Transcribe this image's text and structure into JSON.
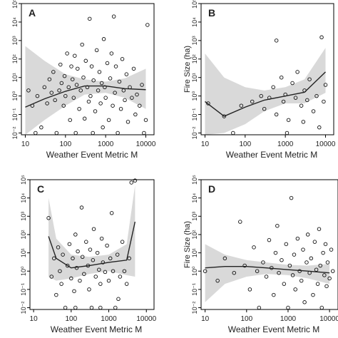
{
  "chart_data": [
    {
      "type": "scatter",
      "panel_label": "A",
      "xlabel": "Weather Event Metric M",
      "ylabel": "",
      "x_scale": "log",
      "y_scale": "log",
      "xlim": [
        8,
        16000
      ],
      "ylim": [
        0.008,
        100000
      ],
      "x_ticks": [
        "10",
        "100",
        "1000",
        "10000"
      ],
      "y_ticks": [
        "10^-2",
        "10^-1",
        "10^0",
        "10^1",
        "10^2",
        "10^3",
        "10^4",
        "10^5"
      ],
      "points": [
        [
          12,
          2
        ],
        [
          15,
          0.3
        ],
        [
          18,
          0.01
        ],
        [
          20,
          1
        ],
        [
          25,
          0.02
        ],
        [
          30,
          3
        ],
        [
          35,
          0.4
        ],
        [
          40,
          8
        ],
        [
          45,
          1.5
        ],
        [
          50,
          20
        ],
        [
          55,
          0.6
        ],
        [
          60,
          0.01
        ],
        [
          70,
          2
        ],
        [
          75,
          50
        ],
        [
          80,
          5
        ],
        [
          90,
          0.3
        ],
        [
          95,
          12
        ],
        [
          100,
          1
        ],
        [
          110,
          200
        ],
        [
          120,
          3
        ],
        [
          130,
          0.05
        ],
        [
          140,
          40
        ],
        [
          150,
          8
        ],
        [
          160,
          0.8
        ],
        [
          170,
          150
        ],
        [
          180,
          0.01
        ],
        [
          190,
          4
        ],
        [
          200,
          30
        ],
        [
          220,
          0.2
        ],
        [
          240,
          2
        ],
        [
          260,
          600
        ],
        [
          280,
          10
        ],
        [
          300,
          0.06
        ],
        [
          320,
          80
        ],
        [
          350,
          3
        ],
        [
          380,
          0.5
        ],
        [
          400,
          15000
        ],
        [
          420,
          1
        ],
        [
          450,
          40
        ],
        [
          480,
          0.01
        ],
        [
          500,
          7
        ],
        [
          550,
          0.15
        ],
        [
          600,
          300
        ],
        [
          650,
          2
        ],
        [
          700,
          20
        ],
        [
          750,
          0.4
        ],
        [
          800,
          5
        ],
        [
          850,
          0.02
        ],
        [
          900,
          1200
        ],
        [
          950,
          3
        ],
        [
          1000,
          0.8
        ],
        [
          1100,
          60
        ],
        [
          1200,
          0.05
        ],
        [
          1300,
          9
        ],
        [
          1400,
          200
        ],
        [
          1500,
          0.3
        ],
        [
          1600,
          20000
        ],
        [
          1700,
          1.5
        ],
        [
          1800,
          40
        ],
        [
          2000,
          0.01
        ],
        [
          2200,
          6
        ],
        [
          2400,
          0.2
        ],
        [
          2600,
          100
        ],
        [
          2800,
          2
        ],
        [
          3000,
          0.6
        ],
        [
          3300,
          15
        ],
        [
          3600,
          0.04
        ],
        [
          4000,
          3
        ],
        [
          4500,
          0.8
        ],
        [
          5000,
          30
        ],
        [
          5500,
          0.1
        ],
        [
          6000,
          1.2
        ],
        [
          7000,
          0.3
        ],
        [
          8000,
          4
        ],
        [
          9000,
          0.01
        ],
        [
          10000,
          0.05
        ],
        [
          11000,
          7000
        ]
      ],
      "curve": [
        [
          10,
          0.25
        ],
        [
          30,
          0.7
        ],
        [
          100,
          1.8
        ],
        [
          300,
          3.5
        ],
        [
          1000,
          3.5
        ],
        [
          3000,
          2.5
        ],
        [
          10000,
          2.2
        ]
      ],
      "band_upper": [
        [
          10,
          500
        ],
        [
          30,
          80
        ],
        [
          100,
          15
        ],
        [
          300,
          8
        ],
        [
          1000,
          6
        ],
        [
          3000,
          9
        ],
        [
          10000,
          30
        ]
      ],
      "band_lower": [
        [
          10,
          0.002
        ],
        [
          30,
          0.05
        ],
        [
          100,
          0.3
        ],
        [
          300,
          1.2
        ],
        [
          1000,
          1.5
        ],
        [
          3000,
          0.8
        ],
        [
          10000,
          0.2
        ]
      ]
    },
    {
      "type": "scatter",
      "panel_label": "B",
      "xlabel": "Weather Event Metric M",
      "ylabel": "Fire Size (ha)",
      "x_scale": "log",
      "y_scale": "log",
      "xlim": [
        8,
        16000
      ],
      "ylim": [
        0.008,
        100000
      ],
      "x_ticks": [
        "10",
        "100",
        "1000",
        "10000"
      ],
      "y_ticks": [
        "10^-2",
        "10^-1",
        "10^0",
        "10^1",
        "10^2",
        "10^3",
        "10^4",
        "10^5"
      ],
      "points": [
        [
          12,
          0.4
        ],
        [
          30,
          0.08
        ],
        [
          50,
          0.01
        ],
        [
          80,
          0.3
        ],
        [
          150,
          0.5
        ],
        [
          250,
          1
        ],
        [
          300,
          0.2
        ],
        [
          400,
          0.8
        ],
        [
          500,
          3
        ],
        [
          600,
          0.1
        ],
        [
          800,
          10
        ],
        [
          900,
          0.5
        ],
        [
          1000,
          1.2
        ],
        [
          1200,
          0.05
        ],
        [
          1500,
          5
        ],
        [
          1800,
          0.8
        ],
        [
          2000,
          20
        ],
        [
          2500,
          0.3
        ],
        [
          3000,
          2
        ],
        [
          3500,
          0.6
        ],
        [
          4000,
          8
        ],
        [
          5000,
          0.15
        ],
        [
          6000,
          1
        ],
        [
          7000,
          0.02
        ],
        [
          8000,
          1500
        ],
        [
          9000,
          0.5
        ],
        [
          10000,
          4
        ],
        [
          600,
          1000
        ],
        [
          1100,
          0.01
        ],
        [
          2800,
          0.04
        ]
      ],
      "curve": [
        [
          10,
          0.5
        ],
        [
          30,
          0.08
        ],
        [
          100,
          0.25
        ],
        [
          300,
          0.6
        ],
        [
          1000,
          1
        ],
        [
          3000,
          1.6
        ],
        [
          10000,
          20
        ]
      ],
      "band_upper": [
        [
          10,
          200
        ],
        [
          30,
          10
        ],
        [
          100,
          3
        ],
        [
          300,
          2
        ],
        [
          1000,
          3
        ],
        [
          3000,
          8
        ],
        [
          10000,
          400
        ]
      ],
      "band_lower": [
        [
          10,
          0.003
        ],
        [
          30,
          0.01
        ],
        [
          100,
          0.03
        ],
        [
          300,
          0.15
        ],
        [
          1000,
          0.4
        ],
        [
          3000,
          0.4
        ],
        [
          10000,
          1.5
        ]
      ]
    },
    {
      "type": "scatter",
      "panel_label": "C",
      "xlabel": "Weather Event Metric M",
      "ylabel": "",
      "x_scale": "log",
      "y_scale": "log",
      "xlim": [
        8,
        16000
      ],
      "ylim": [
        0.008,
        100000
      ],
      "x_ticks": [
        "10",
        "100",
        "1000",
        "10000"
      ],
      "y_ticks": [
        "10^-2",
        "10^-1",
        "10^0",
        "10^1",
        "10^2",
        "10^3",
        "10^4",
        "10^5"
      ],
      "points": [
        [
          25,
          800
        ],
        [
          30,
          0.5
        ],
        [
          35,
          5
        ],
        [
          40,
          0.05
        ],
        [
          45,
          20
        ],
        [
          50,
          1
        ],
        [
          55,
          0.2
        ],
        [
          60,
          8
        ],
        [
          70,
          0.01
        ],
        [
          80,
          2
        ],
        [
          90,
          30
        ],
        [
          100,
          0.4
        ],
        [
          110,
          5
        ],
        [
          120,
          0.08
        ],
        [
          130,
          100
        ],
        [
          140,
          1.5
        ],
        [
          150,
          12
        ],
        [
          170,
          0.3
        ],
        [
          190,
          3000
        ],
        [
          200,
          6
        ],
        [
          220,
          0.7
        ],
        [
          250,
          40
        ],
        [
          280,
          2
        ],
        [
          300,
          0.1
        ],
        [
          320,
          15
        ],
        [
          350,
          0.01
        ],
        [
          380,
          4
        ],
        [
          400,
          200
        ],
        [
          450,
          0.5
        ],
        [
          500,
          10
        ],
        [
          550,
          1.2
        ],
        [
          600,
          0.2
        ],
        [
          650,
          60
        ],
        [
          700,
          3
        ],
        [
          800,
          0.9
        ],
        [
          900,
          25
        ],
        [
          1000,
          0.3
        ],
        [
          1100,
          5
        ],
        [
          1200,
          1500
        ],
        [
          1300,
          1
        ],
        [
          1500,
          0.01
        ],
        [
          1700,
          8
        ],
        [
          2000,
          0.5
        ],
        [
          2300,
          40
        ],
        [
          2600,
          1
        ],
        [
          3000,
          0.2
        ],
        [
          3500,
          5
        ],
        [
          4000,
          70000
        ],
        [
          5000,
          90000
        ],
        [
          1800,
          0.03
        ],
        [
          130,
          0.01
        ],
        [
          600,
          0.01
        ]
      ],
      "curve": [
        [
          25,
          80
        ],
        [
          40,
          5
        ],
        [
          100,
          1.5
        ],
        [
          300,
          2
        ],
        [
          1000,
          3
        ],
        [
          3000,
          4
        ],
        [
          5000,
          500
        ]
      ],
      "band_upper": [
        [
          25,
          10000
        ],
        [
          40,
          60
        ],
        [
          100,
          8
        ],
        [
          300,
          6
        ],
        [
          1000,
          8
        ],
        [
          3000,
          30
        ],
        [
          5000,
          50000
        ]
      ],
      "band_lower": [
        [
          25,
          0.5
        ],
        [
          40,
          0.3
        ],
        [
          100,
          0.4
        ],
        [
          300,
          0.7
        ],
        [
          1000,
          1
        ],
        [
          3000,
          0.6
        ],
        [
          5000,
          0.5
        ]
      ]
    },
    {
      "type": "scatter",
      "panel_label": "D",
      "xlabel": "Weather Event Metric M",
      "ylabel": "Fire Size (ha)",
      "x_scale": "log",
      "y_scale": "log",
      "xlim": [
        8,
        16000
      ],
      "ylim": [
        0.008,
        100000
      ],
      "x_ticks": [
        "10",
        "100",
        "1000",
        "10000"
      ],
      "y_ticks": [
        "10^-2",
        "10^-1",
        "10^0",
        "10^1",
        "10^2",
        "10^3",
        "10^4",
        "10^5"
      ],
      "points": [
        [
          10,
          1
        ],
        [
          20,
          0.3
        ],
        [
          30,
          5
        ],
        [
          50,
          0.8
        ],
        [
          70,
          500
        ],
        [
          90,
          2
        ],
        [
          120,
          0.1
        ],
        [
          150,
          20
        ],
        [
          180,
          1
        ],
        [
          200,
          0.01
        ],
        [
          250,
          3
        ],
        [
          300,
          0.5
        ],
        [
          350,
          50
        ],
        [
          400,
          1.5
        ],
        [
          450,
          0.05
        ],
        [
          500,
          10
        ],
        [
          550,
          300
        ],
        [
          600,
          0.8
        ],
        [
          700,
          4
        ],
        [
          800,
          0.2
        ],
        [
          900,
          30
        ],
        [
          1000,
          0.01
        ],
        [
          1100,
          2
        ],
        [
          1200,
          10000
        ],
        [
          1300,
          0.6
        ],
        [
          1400,
          8
        ],
        [
          1500,
          0.1
        ],
        [
          1700,
          60
        ],
        [
          1900,
          1
        ],
        [
          2100,
          0.3
        ],
        [
          2300,
          15
        ],
        [
          2500,
          0.02
        ],
        [
          2800,
          3
        ],
        [
          3000,
          100
        ],
        [
          3300,
          0.8
        ],
        [
          3600,
          5
        ],
        [
          4000,
          0.05
        ],
        [
          4400,
          40
        ],
        [
          4800,
          1.2
        ],
        [
          5200,
          0.2
        ],
        [
          5600,
          200
        ],
        [
          6000,
          2
        ],
        [
          6500,
          0.01
        ],
        [
          7000,
          10
        ],
        [
          7500,
          0.6
        ],
        [
          8000,
          30
        ],
        [
          8500,
          0.15
        ],
        [
          9000,
          3
        ],
        [
          10000,
          0.4
        ],
        [
          11000,
          15
        ],
        [
          12000,
          1
        ]
      ],
      "curve": [
        [
          10,
          1.5
        ],
        [
          30,
          1.8
        ],
        [
          100,
          1.8
        ],
        [
          300,
          1.5
        ],
        [
          1000,
          1.2
        ],
        [
          3000,
          1
        ],
        [
          10000,
          0.8
        ]
      ],
      "band_upper": [
        [
          10,
          30
        ],
        [
          30,
          8
        ],
        [
          100,
          4
        ],
        [
          300,
          3
        ],
        [
          1000,
          2.2
        ],
        [
          3000,
          2
        ],
        [
          10000,
          2.5
        ]
      ],
      "band_lower": [
        [
          10,
          0.02
        ],
        [
          30,
          0.2
        ],
        [
          100,
          0.5
        ],
        [
          300,
          0.7
        ],
        [
          1000,
          0.6
        ],
        [
          3000,
          0.4
        ],
        [
          10000,
          0.2
        ]
      ]
    }
  ]
}
